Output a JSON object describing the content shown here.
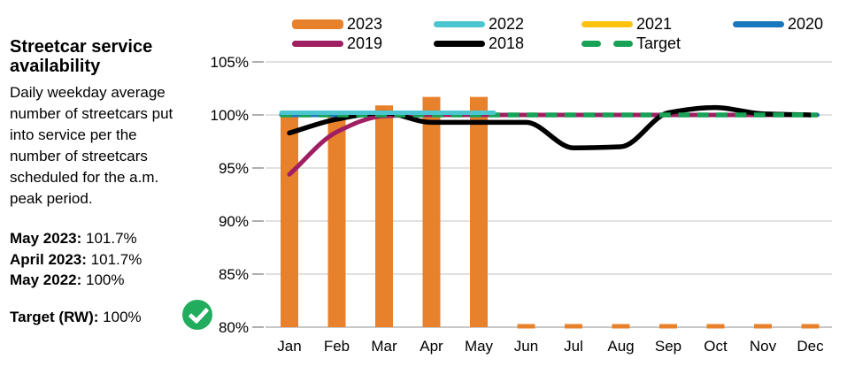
{
  "panel": {
    "title_lines": [
      "Streetcar service",
      "availability"
    ],
    "description_lines": [
      "Daily weekday average",
      "number of streetcars put",
      "into service per the",
      "number of streetcars",
      "scheduled for the a.m.",
      "peak period."
    ],
    "stats": [
      {
        "label": "May 2023:",
        "value": "101.7%"
      },
      {
        "label": "April 2023:",
        "value": "101.7%"
      },
      {
        "label": "May 2022:",
        "value": "100%"
      }
    ],
    "target": {
      "label": "Target (RW):",
      "value": "100%"
    },
    "target_met_icon": "check-circle-icon",
    "target_met_color": "#22AC5E"
  },
  "legend": [
    {
      "label": "2023",
      "color": "#E8812C",
      "type": "bar"
    },
    {
      "label": "2022",
      "color": "#4BC6D0",
      "type": "line"
    },
    {
      "label": "2021",
      "color": "#FFC20E",
      "type": "line"
    },
    {
      "label": "2020",
      "color": "#1878BE",
      "type": "line"
    },
    {
      "label": "2019",
      "color": "#A01E62",
      "type": "line"
    },
    {
      "label": "2018",
      "color": "#000000",
      "type": "line"
    },
    {
      "label": "Target",
      "color": "#17A257",
      "type": "dashed-line"
    }
  ],
  "chart_data": {
    "type": "bar+line",
    "title": "Streetcar service availability",
    "categories": [
      "Jan",
      "Feb",
      "Mar",
      "Apr",
      "May",
      "Jun",
      "Jul",
      "Aug",
      "Sep",
      "Oct",
      "Nov",
      "Dec"
    ],
    "ylim": [
      80,
      105
    ],
    "yticks": [
      105,
      100,
      95,
      90,
      85,
      80
    ],
    "ytick_suffix": "%",
    "grid": true,
    "legend_position": "top",
    "bar_series": {
      "name": "2023",
      "color": "#E8812C",
      "values": [
        100,
        100,
        100.9,
        101.7,
        101.7,
        null,
        null,
        null,
        null,
        null,
        null,
        null
      ]
    },
    "line_series": [
      {
        "name": "2021",
        "color": "#FFC20E",
        "width": 5,
        "values": [
          100,
          100,
          100,
          100,
          100,
          100,
          100,
          100,
          100,
          100,
          100,
          100
        ],
        "x_extend": [
          -9,
          8
        ]
      },
      {
        "name": "2020",
        "color": "#1878BE",
        "width": 5,
        "values": [
          100,
          100,
          100,
          100,
          100,
          100,
          100,
          100,
          100,
          100,
          100,
          100
        ],
        "x_extend": [
          -9,
          8
        ]
      },
      {
        "name": "2019",
        "color": "#A01E62",
        "width": 5,
        "values": [
          94.4,
          98.4,
          99.9,
          100,
          100,
          100,
          100,
          100,
          100,
          100,
          100,
          100
        ],
        "x_extend": [
          0,
          6
        ]
      },
      {
        "name": "2018",
        "color": "#000000",
        "width": 5.5,
        "values": [
          98.3,
          99.6,
          100.2,
          99.3,
          99.3,
          99.3,
          96.9,
          97.0,
          100.2,
          100.7,
          100.1,
          100
        ]
      },
      {
        "name": "Target",
        "color": "#17A257",
        "width": 5.5,
        "dashed": true,
        "values": [
          100,
          100,
          100,
          100,
          100,
          100,
          100,
          100,
          100,
          100,
          100,
          100
        ],
        "x_extend": [
          -10,
          8
        ]
      },
      {
        "name": "2022",
        "color": "#4BC6D0",
        "width": 5,
        "y_offset": -2.5,
        "values": [
          100,
          100,
          100,
          100,
          100,
          null,
          null,
          null,
          null,
          null,
          null,
          null
        ],
        "x_extend": [
          -9,
          17
        ]
      }
    ]
  }
}
